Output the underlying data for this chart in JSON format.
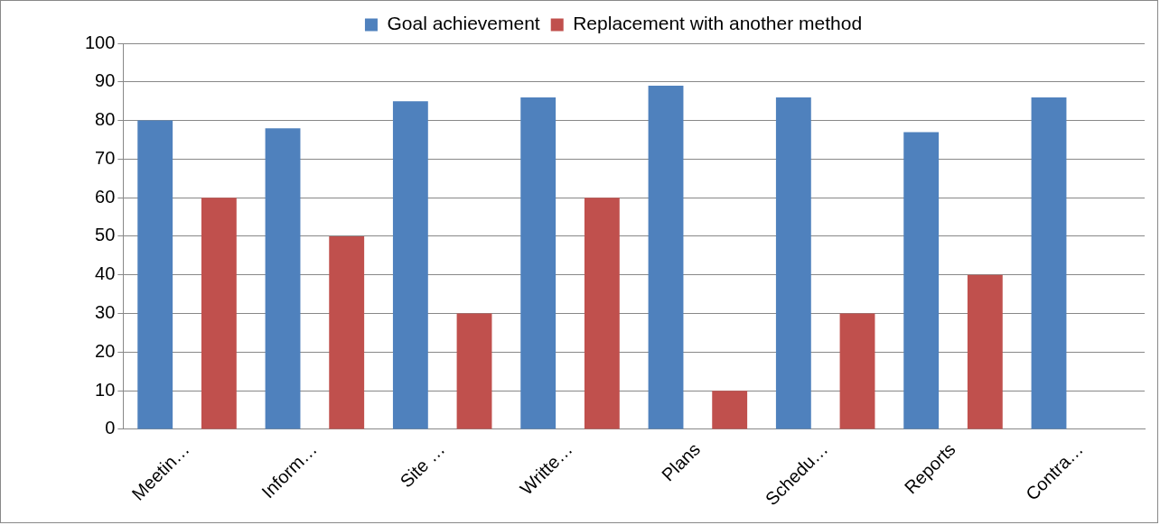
{
  "chart_data": {
    "type": "bar",
    "categories": [
      "Meetin…",
      "Inform…",
      "Site …",
      "Writte…",
      "Plans",
      "Schedu…",
      "Reports",
      "Contra…"
    ],
    "series": [
      {
        "name": "Goal achievement",
        "color": "#4f81bd",
        "values": [
          80,
          78,
          85,
          86,
          89,
          86,
          77,
          86
        ]
      },
      {
        "name": "Replacement with another method",
        "color": "#c0504d",
        "values": [
          60,
          50,
          30,
          60,
          10,
          30,
          40,
          null
        ]
      }
    ],
    "ylim": [
      0,
      100
    ],
    "yticks": [
      0,
      10,
      20,
      30,
      40,
      50,
      60,
      70,
      80,
      90,
      100
    ],
    "grid": "y",
    "legend": "top"
  }
}
